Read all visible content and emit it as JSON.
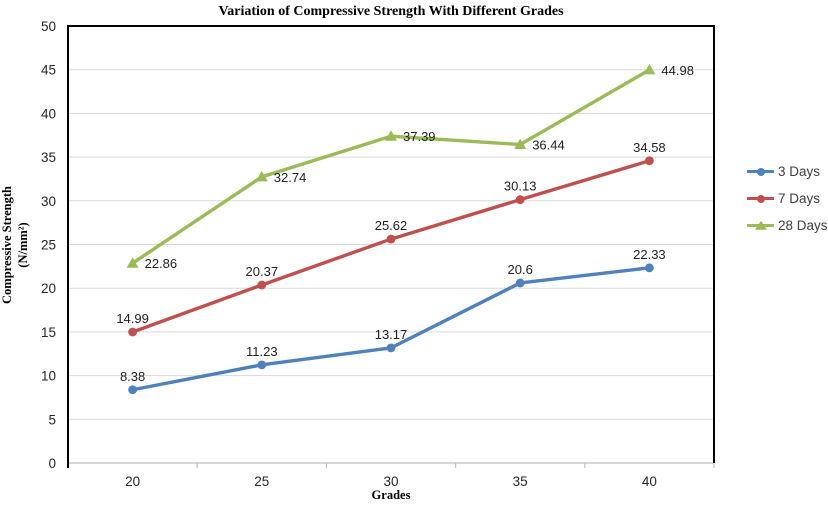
{
  "chart_data": {
    "type": "line",
    "title": "Variation of Compressive Strength With Different Grades",
    "xlabel": "Grades",
    "ylabel_line1": "Compressive Strength",
    "ylabel_line2": "(N/mm²)",
    "categories": [
      "20",
      "25",
      "30",
      "35",
      "40"
    ],
    "series": [
      {
        "name": "3 Days",
        "color": "#4F81BD",
        "marker": "circle",
        "label_position": "above",
        "values": [
          8.38,
          11.23,
          13.17,
          20.6,
          22.33
        ]
      },
      {
        "name": "7 Days",
        "color": "#C0504D",
        "marker": "circle",
        "label_position": "above",
        "values": [
          14.99,
          20.37,
          25.62,
          30.13,
          34.58
        ]
      },
      {
        "name": "28 Days",
        "color": "#9BBB59",
        "marker": "triangle",
        "label_position": "right",
        "values": [
          22.86,
          32.74,
          37.39,
          36.44,
          44.98
        ]
      }
    ],
    "ylim": [
      0,
      50
    ],
    "ytick_step": 5,
    "yticks": [
      "0",
      "5",
      "10",
      "15",
      "20",
      "25",
      "30",
      "35",
      "40",
      "45",
      "50"
    ],
    "legend_position": "right",
    "grid": "horizontal",
    "data_labels": true,
    "colors": {
      "gridline": "#D9D9D9",
      "x_axis_line": "#BFBFBF",
      "plot_border": "#000000",
      "tick_label": "#262626",
      "data_label": "#1f1f1f",
      "legend_text": "#404040"
    }
  }
}
